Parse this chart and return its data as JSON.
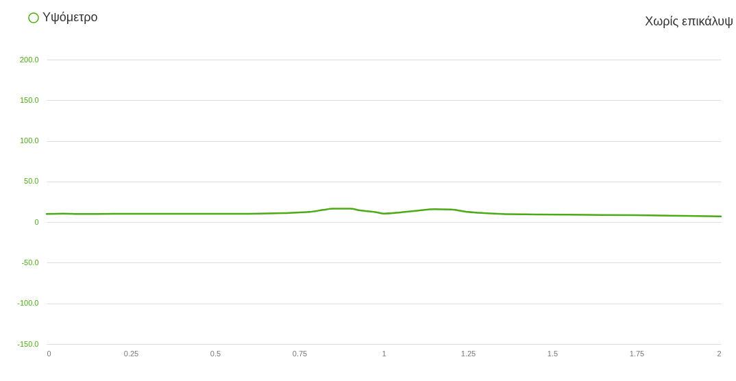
{
  "chart_data": {
    "type": "line",
    "annotations": [
      "Χωρίς επικάλυψ"
    ],
    "x": [
      0,
      0.05,
      0.1,
      0.2,
      0.5,
      0.6,
      0.7,
      0.75,
      0.78,
      0.82,
      0.85,
      0.9,
      0.93,
      0.98,
      1.0,
      1.05,
      1.1,
      1.15,
      1.2,
      1.25,
      1.3,
      1.35,
      1.45,
      1.6,
      1.75,
      1.85,
      2.0
    ],
    "series": [
      {
        "name": "Υψόμετρο",
        "color": "#4caa14",
        "values": [
          10,
          10.5,
          10,
          10.2,
          10.2,
          10.3,
          11,
          12,
          12.5,
          15,
          16.5,
          16.5,
          14.5,
          12,
          10.5,
          12,
          14,
          16,
          15.5,
          12.5,
          11,
          10,
          9.5,
          9,
          8.5,
          8,
          7
        ]
      }
    ],
    "xlim": [
      0,
      2
    ],
    "xticks": [
      0,
      0.25,
      0.5,
      0.75,
      1,
      1.25,
      1.5,
      1.75,
      2
    ],
    "ylim": [
      -150,
      200
    ],
    "yticks": [
      {
        "value": -150,
        "label": "-150.0"
      },
      {
        "value": -100,
        "label": "-100.0"
      },
      {
        "value": -50,
        "label": "-50.0"
      },
      {
        "value": 0,
        "label": "0"
      },
      {
        "value": 50,
        "label": "50.0"
      },
      {
        "value": 100,
        "label": "100.0"
      },
      {
        "value": 150,
        "label": "150.0"
      },
      {
        "value": 200,
        "label": "200.0"
      }
    ],
    "grid": "y",
    "legend": "top left",
    "marker": "none",
    "line_style": "solid"
  }
}
